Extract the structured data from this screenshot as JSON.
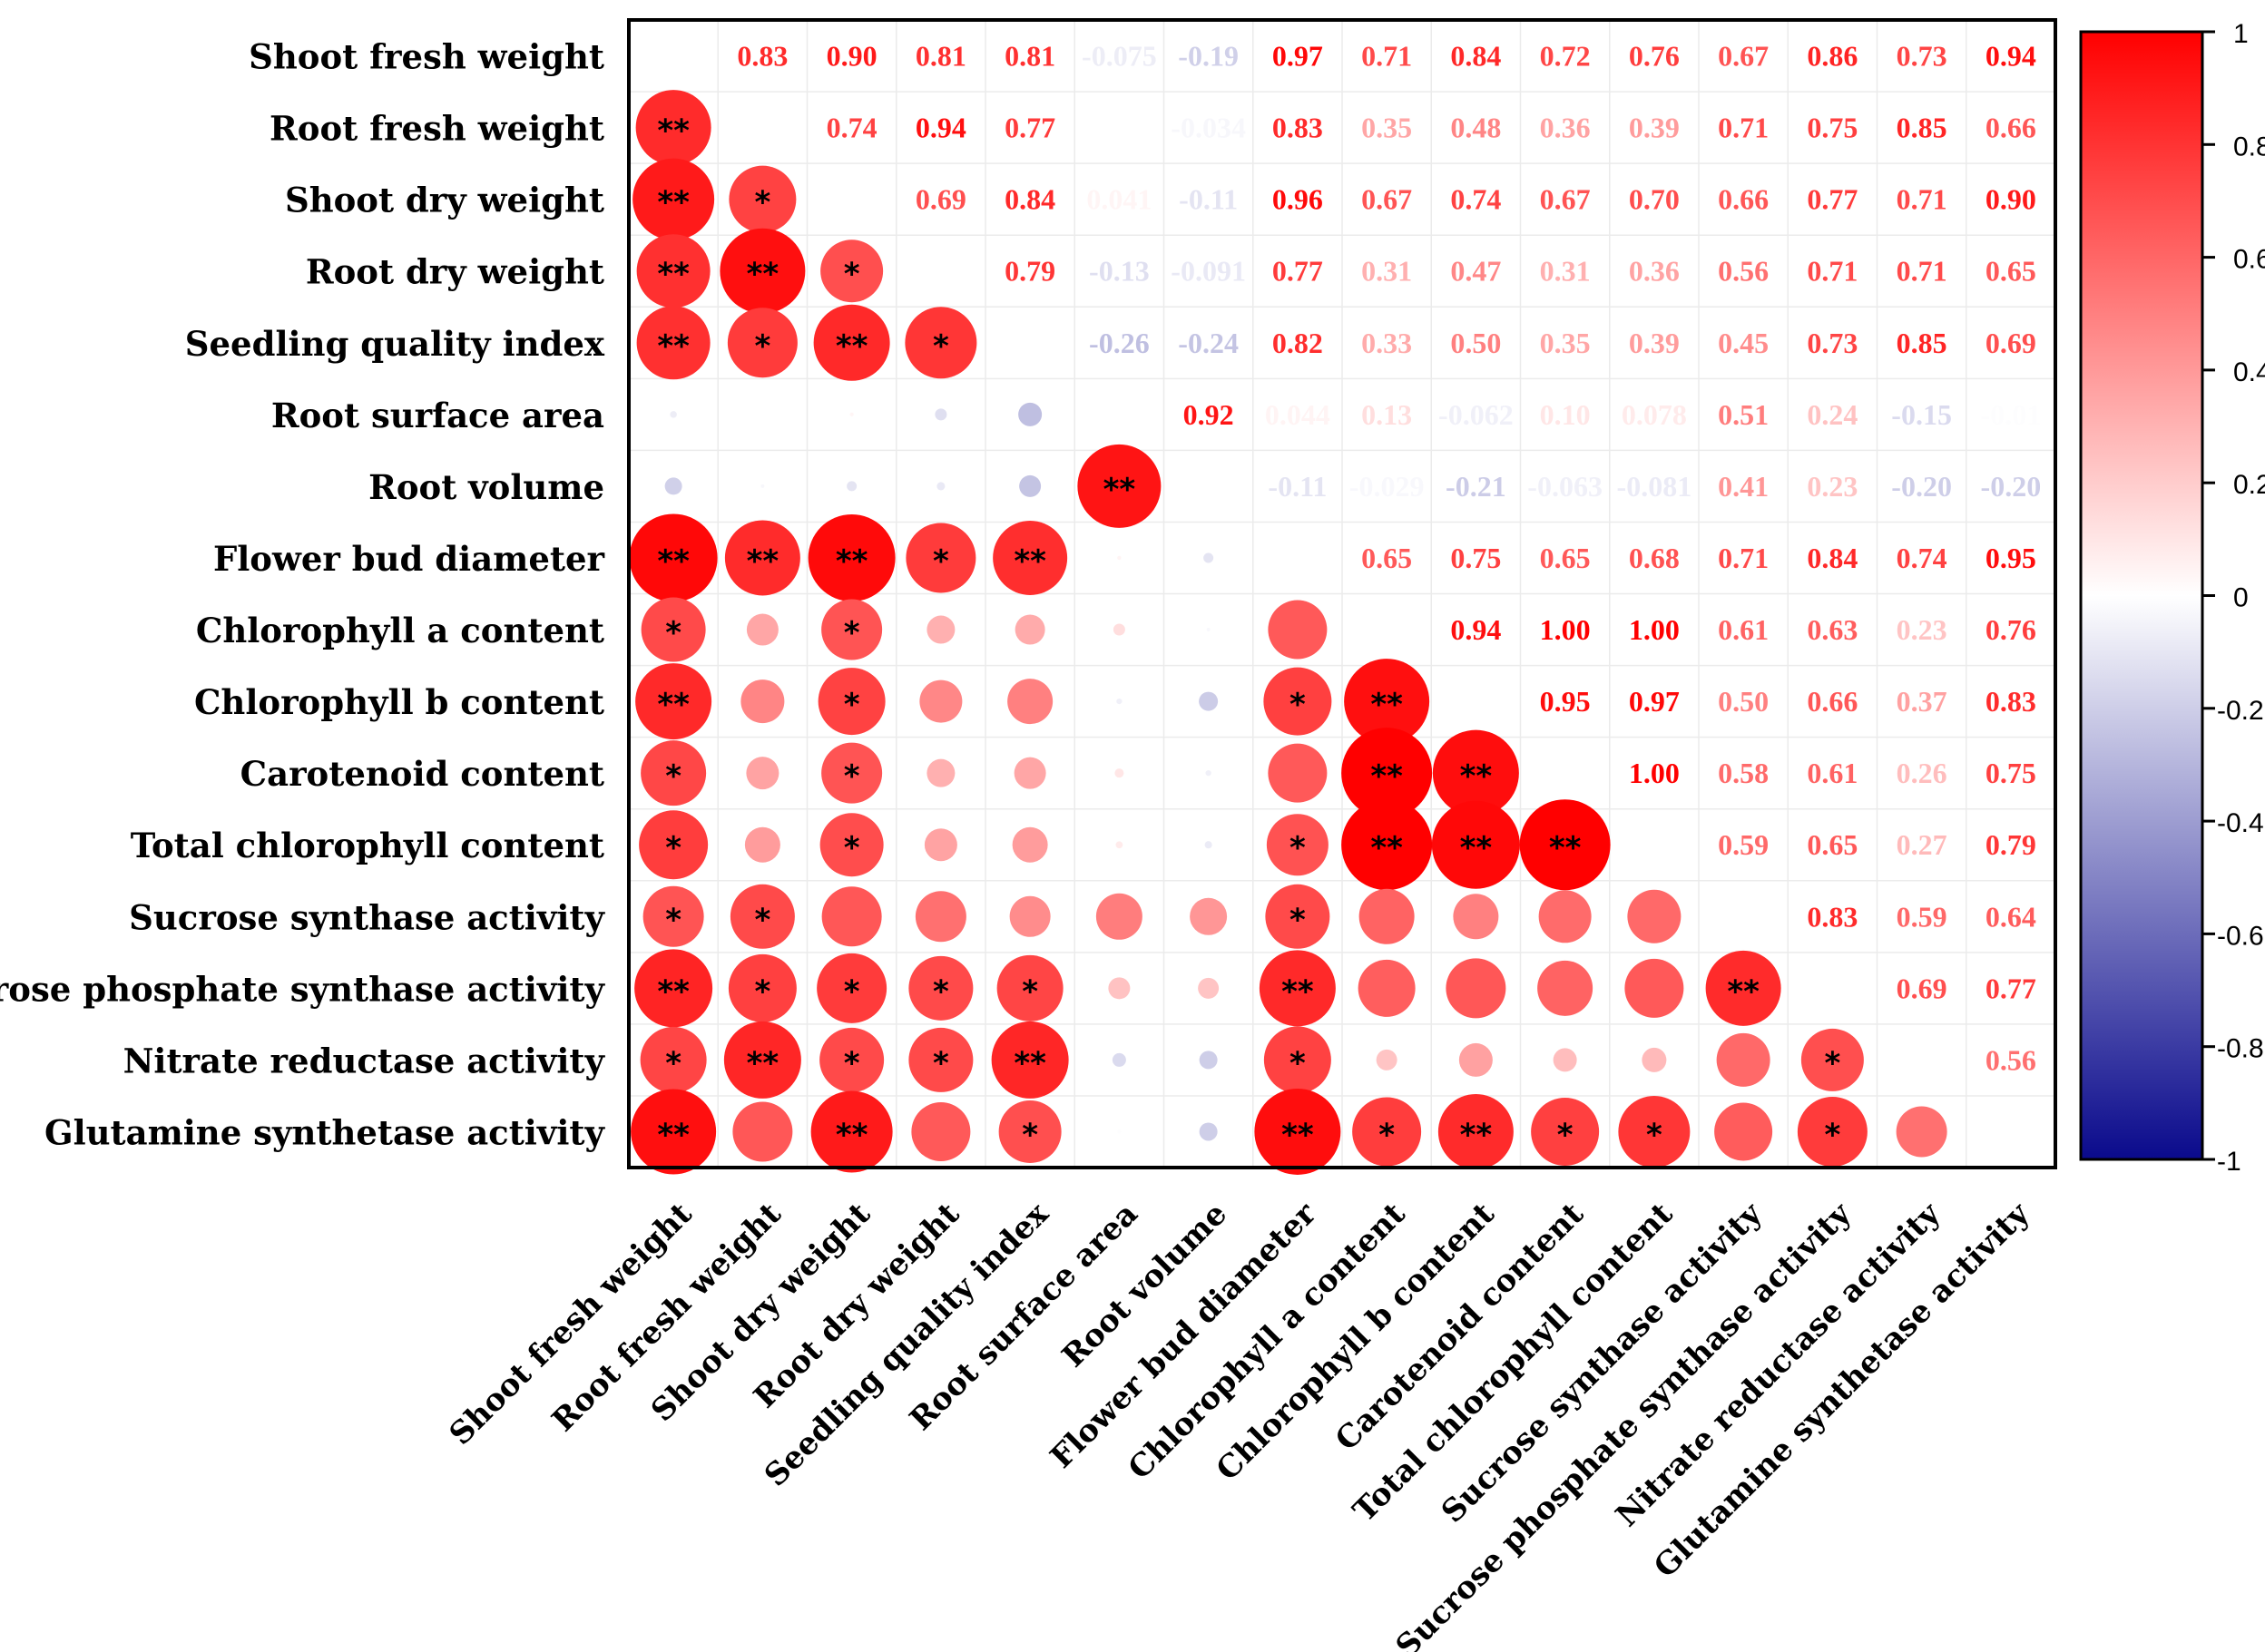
{
  "chart_data": {
    "type": "heatmap",
    "subtype": "correlation-matrix",
    "variables": [
      "Shoot fresh weight",
      "Root fresh weight",
      "Shoot dry weight",
      "Root dry weight",
      "Seedling quality index",
      "Root surface area",
      "Root volume",
      "Flower bud diameter",
      "Chlorophyll a content",
      "Chlorophyll b content",
      "Carotenoid content",
      "Total chlorophyll content",
      "Sucrose synthase activity",
      "Sucrose phosphate synthase activity",
      "Nitrate reductase activity",
      "Glutamine synthetase activity"
    ],
    "upper_labels": [
      [
        "",
        "0.83",
        "0.90",
        "0.81",
        "0.81",
        "-0.075",
        "-0.19",
        "0.97",
        "0.71",
        "0.84",
        "0.72",
        "0.76",
        "0.67",
        "0.86",
        "0.73",
        "0.94"
      ],
      [
        "",
        "",
        "0.74",
        "0.94",
        "0.77",
        "",
        "-0.034",
        "0.83",
        "0.35",
        "0.48",
        "0.36",
        "0.39",
        "0.71",
        "0.75",
        "0.85",
        "0.66"
      ],
      [
        "",
        "",
        "",
        "0.69",
        "0.84",
        "0.041",
        "-0.11",
        "0.96",
        "0.67",
        "0.74",
        "0.67",
        "0.70",
        "0.66",
        "0.77",
        "0.71",
        "0.90"
      ],
      [
        "",
        "",
        "",
        "",
        "0.79",
        "-0.13",
        "-0.091",
        "0.77",
        "0.31",
        "0.47",
        "0.31",
        "0.36",
        "0.56",
        "0.71",
        "0.71",
        "0.65"
      ],
      [
        "",
        "",
        "",
        "",
        "",
        "-0.26",
        "-0.24",
        "0.82",
        "0.33",
        "0.50",
        "0.35",
        "0.39",
        "0.45",
        "0.73",
        "0.85",
        "0.69"
      ],
      [
        "",
        "",
        "",
        "",
        "",
        "",
        "0.92",
        "0.044",
        "0.13",
        "-0.062",
        "0.10",
        "0.078",
        "0.51",
        "0.24",
        "-0.15",
        "-0.01"
      ],
      [
        "",
        "",
        "",
        "",
        "",
        "",
        "",
        "-0.11",
        "-0.029",
        "-0.21",
        "-0.063",
        "-0.081",
        "0.41",
        "0.23",
        "-0.20",
        "-0.20"
      ],
      [
        "",
        "",
        "",
        "",
        "",
        "",
        "",
        "",
        "0.65",
        "0.75",
        "0.65",
        "0.68",
        "0.71",
        "0.84",
        "0.74",
        "0.95"
      ],
      [
        "",
        "",
        "",
        "",
        "",
        "",
        "",
        "",
        "",
        "0.94",
        "1.00",
        "1.00",
        "0.61",
        "0.63",
        "0.23",
        "0.76"
      ],
      [
        "",
        "",
        "",
        "",
        "",
        "",
        "",
        "",
        "",
        "",
        "0.95",
        "0.97",
        "0.50",
        "0.66",
        "0.37",
        "0.83"
      ],
      [
        "",
        "",
        "",
        "",
        "",
        "",
        "",
        "",
        "",
        "",
        "",
        "1.00",
        "0.58",
        "0.61",
        "0.26",
        "0.75"
      ],
      [
        "",
        "",
        "",
        "",
        "",
        "",
        "",
        "",
        "",
        "",
        "",
        "",
        "0.59",
        "0.65",
        "0.27",
        "0.79"
      ],
      [
        "",
        "",
        "",
        "",
        "",
        "",
        "",
        "",
        "",
        "",
        "",
        "",
        "",
        "0.83",
        "0.59",
        "0.64"
      ],
      [
        "",
        "",
        "",
        "",
        "",
        "",
        "",
        "",
        "",
        "",
        "",
        "",
        "",
        "",
        "0.69",
        "0.77"
      ],
      [
        "",
        "",
        "",
        "",
        "",
        "",
        "",
        "",
        "",
        "",
        "",
        "",
        "",
        "",
        "",
        "0.56"
      ],
      [
        "",
        "",
        "",
        "",
        "",
        "",
        "",
        "",
        "",
        "",
        "",
        "",
        "",
        "",
        "",
        ""
      ]
    ],
    "lower_circle_values": [
      [
        null,
        null,
        null,
        null,
        null,
        null,
        null,
        null,
        null,
        null,
        null,
        null,
        null,
        null,
        null,
        null
      ],
      [
        0.83,
        null,
        null,
        null,
        null,
        null,
        null,
        null,
        null,
        null,
        null,
        null,
        null,
        null,
        null,
        null
      ],
      [
        0.9,
        0.74,
        null,
        null,
        null,
        null,
        null,
        null,
        null,
        null,
        null,
        null,
        null,
        null,
        null,
        null
      ],
      [
        0.81,
        0.94,
        0.69,
        null,
        null,
        null,
        null,
        null,
        null,
        null,
        null,
        null,
        null,
        null,
        null,
        null
      ],
      [
        0.81,
        0.77,
        0.84,
        0.79,
        null,
        null,
        null,
        null,
        null,
        null,
        null,
        null,
        null,
        null,
        null,
        null
      ],
      [
        -0.075,
        0.0,
        0.041,
        -0.13,
        -0.26,
        null,
        null,
        null,
        null,
        null,
        null,
        null,
        null,
        null,
        null,
        null
      ],
      [
        -0.19,
        -0.034,
        -0.11,
        -0.091,
        -0.24,
        0.92,
        null,
        null,
        null,
        null,
        null,
        null,
        null,
        null,
        null,
        null
      ],
      [
        0.97,
        0.83,
        0.96,
        0.77,
        0.82,
        0.044,
        -0.11,
        null,
        null,
        null,
        null,
        null,
        null,
        null,
        null,
        null
      ],
      [
        0.71,
        0.35,
        0.67,
        0.31,
        0.33,
        0.13,
        -0.029,
        0.65,
        null,
        null,
        null,
        null,
        null,
        null,
        null,
        null
      ],
      [
        0.84,
        0.48,
        0.74,
        0.47,
        0.5,
        -0.062,
        -0.21,
        0.75,
        0.94,
        null,
        null,
        null,
        null,
        null,
        null,
        null
      ],
      [
        0.72,
        0.36,
        0.67,
        0.31,
        0.35,
        0.1,
        -0.063,
        0.65,
        1.0,
        0.95,
        null,
        null,
        null,
        null,
        null,
        null
      ],
      [
        0.76,
        0.39,
        0.7,
        0.36,
        0.39,
        0.078,
        -0.081,
        0.68,
        1.0,
        0.97,
        1.0,
        null,
        null,
        null,
        null,
        null
      ],
      [
        0.67,
        0.71,
        0.66,
        0.56,
        0.45,
        0.51,
        0.41,
        0.71,
        0.61,
        0.5,
        0.58,
        0.59,
        null,
        null,
        null,
        null
      ],
      [
        0.86,
        0.75,
        0.77,
        0.71,
        0.73,
        0.24,
        0.23,
        0.84,
        0.63,
        0.66,
        0.61,
        0.65,
        0.83,
        null,
        null,
        null
      ],
      [
        0.73,
        0.85,
        0.71,
        0.71,
        0.85,
        -0.15,
        -0.2,
        0.74,
        0.23,
        0.37,
        0.26,
        0.27,
        0.59,
        0.69,
        null,
        null
      ],
      [
        0.94,
        0.66,
        0.9,
        0.65,
        0.69,
        -0.01,
        -0.2,
        0.95,
        0.76,
        0.83,
        0.75,
        0.79,
        0.64,
        0.77,
        0.56,
        null
      ]
    ],
    "significance": [
      [
        "",
        "",
        "",
        "",
        "",
        "",
        "",
        "",
        "",
        "",
        "",
        "",
        "",
        "",
        "",
        ""
      ],
      [
        "**",
        "",
        "",
        "",
        "",
        "",
        "",
        "",
        "",
        "",
        "",
        "",
        "",
        "",
        "",
        ""
      ],
      [
        "**",
        "*",
        "",
        "",
        "",
        "",
        "",
        "",
        "",
        "",
        "",
        "",
        "",
        "",
        "",
        ""
      ],
      [
        "**",
        "**",
        "*",
        "",
        "",
        "",
        "",
        "",
        "",
        "",
        "",
        "",
        "",
        "",
        "",
        ""
      ],
      [
        "**",
        "*",
        "**",
        "*",
        "",
        "",
        "",
        "",
        "",
        "",
        "",
        "",
        "",
        "",
        "",
        ""
      ],
      [
        "",
        "",
        "",
        "",
        "",
        "",
        "",
        "",
        "",
        "",
        "",
        "",
        "",
        "",
        "",
        ""
      ],
      [
        "",
        "",
        "",
        "",
        "",
        "**",
        "",
        "",
        "",
        "",
        "",
        "",
        "",
        "",
        "",
        ""
      ],
      [
        "**",
        "**",
        "**",
        "*",
        "**",
        "",
        "",
        "",
        "",
        "",
        "",
        "",
        "",
        "",
        "",
        ""
      ],
      [
        "*",
        "",
        "*",
        "",
        "",
        "",
        "",
        "",
        "",
        "",
        "",
        "",
        "",
        "",
        "",
        ""
      ],
      [
        "**",
        "",
        "*",
        "",
        "",
        "",
        "",
        "*",
        "**",
        "",
        "",
        "",
        "",
        "",
        "",
        ""
      ],
      [
        "*",
        "",
        "*",
        "",
        "",
        "",
        "",
        "",
        "**",
        "**",
        "",
        "",
        "",
        "",
        "",
        ""
      ],
      [
        "*",
        "",
        "*",
        "",
        "",
        "",
        "",
        "*",
        "**",
        "**",
        "**",
        "",
        "",
        "",
        "",
        ""
      ],
      [
        "*",
        "*",
        "",
        "",
        "",
        "",
        "",
        "*",
        "",
        "",
        "",
        "",
        "",
        "",
        "",
        ""
      ],
      [
        "**",
        "*",
        "*",
        "*",
        "*",
        "",
        "",
        "**",
        "",
        "",
        "",
        "",
        "**",
        "",
        "",
        ""
      ],
      [
        "*",
        "**",
        "*",
        "*",
        "**",
        "",
        "",
        "*",
        "",
        "",
        "",
        "",
        "",
        "*",
        "",
        ""
      ],
      [
        "**",
        "",
        "**",
        "",
        "*",
        "",
        "",
        "**",
        "*",
        "**",
        "*",
        "*",
        "",
        "*",
        "",
        ""
      ]
    ],
    "colorbar": {
      "ticks": [
        "1",
        "0.8",
        "0.6",
        "0.4",
        "0.2",
        "0",
        "-0.2",
        "-0.4",
        "-0.6",
        "-0.8",
        "-1"
      ],
      "range": [
        -1,
        1
      ],
      "color_min": "#0a0a8c",
      "color_mid": "#ffffff",
      "color_max": "#ff0000"
    },
    "title": "",
    "xlabel": "",
    "ylabel": ""
  }
}
